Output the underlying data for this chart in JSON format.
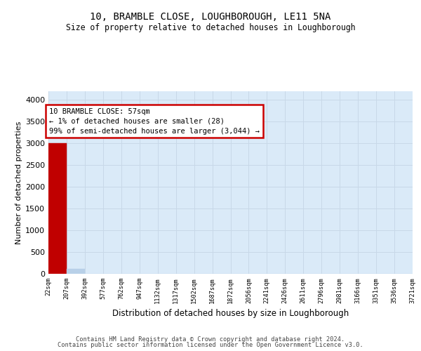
{
  "title": "10, BRAMBLE CLOSE, LOUGHBOROUGH, LE11 5NA",
  "subtitle": "Size of property relative to detached houses in Loughborough",
  "xlabel": "Distribution of detached houses by size in Loughborough",
  "ylabel": "Number of detached properties",
  "bar_edges": [
    22,
    207,
    392,
    577,
    762,
    947,
    1132,
    1317,
    1502,
    1687,
    1872,
    2056,
    2241,
    2426,
    2611,
    2796,
    2981,
    3166,
    3351,
    3536,
    3721
  ],
  "bar_heights": [
    3000,
    120,
    5,
    2,
    1,
    1,
    1,
    1,
    1,
    1,
    1,
    1,
    1,
    1,
    1,
    1,
    1,
    1,
    1,
    1
  ],
  "bar_color": "#b8d0e8",
  "highlight_bar_color": "#c00000",
  "highlight_bar_index": 0,
  "grid_color": "#c8d8e8",
  "bg_color": "#daeaf8",
  "annotation_text": "10 BRAMBLE CLOSE: 57sqm\n← 1% of detached houses are smaller (28)\n99% of semi-detached houses are larger (3,044) →",
  "annotation_box_color": "#ffffff",
  "annotation_box_edge_color": "#cc0000",
  "ylim": [
    0,
    4200
  ],
  "yticks": [
    0,
    500,
    1000,
    1500,
    2000,
    2500,
    3000,
    3500,
    4000
  ],
  "footer_line1": "Contains HM Land Registry data © Crown copyright and database right 2024.",
  "footer_line2": "Contains public sector information licensed under the Open Government Licence v3.0.",
  "tick_labels": [
    "22sqm",
    "207sqm",
    "392sqm",
    "577sqm",
    "762sqm",
    "947sqm",
    "1132sqm",
    "1317sqm",
    "1502sqm",
    "1687sqm",
    "1872sqm",
    "2056sqm",
    "2241sqm",
    "2426sqm",
    "2611sqm",
    "2796sqm",
    "2981sqm",
    "3166sqm",
    "3351sqm",
    "3536sqm",
    "3721sqm"
  ]
}
